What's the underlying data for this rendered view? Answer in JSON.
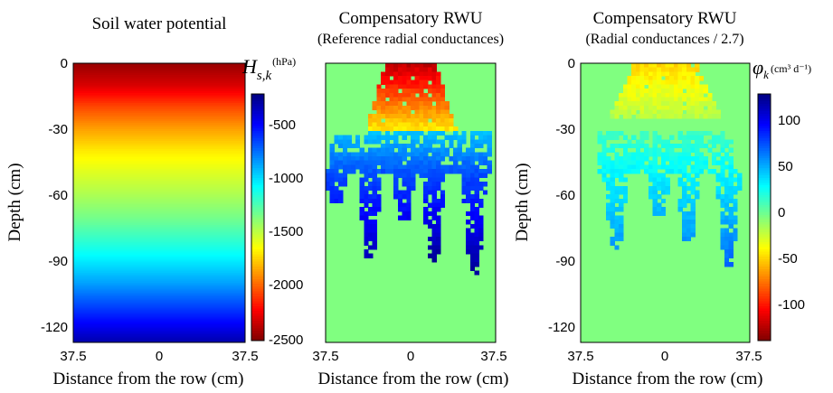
{
  "chart_data": [
    {
      "type": "heatmap",
      "title": "Soil water potential",
      "subtitle": "",
      "xlabel": "Distance from the row  (cm)",
      "ylabel": "Depth  (cm)",
      "xticks": [
        "37.5",
        "0",
        "37.5"
      ],
      "yticks": [
        "0",
        "-30",
        "-60",
        "-90",
        "-120"
      ],
      "x_range": [
        -37.5,
        37.5
      ],
      "y_range": [
        -127,
        0
      ],
      "field": "soil water potential, varying with depth only",
      "profile": {
        "depth": [
          0,
          -10,
          -20,
          -30,
          -40,
          -50,
          -60,
          -70,
          -80,
          -90,
          -100,
          -110,
          -120,
          -127
        ],
        "value": [
          -2450,
          -2300,
          -2050,
          -1850,
          -1680,
          -1560,
          -1450,
          -1330,
          -1180,
          -1020,
          -850,
          -650,
          -450,
          -300
        ]
      },
      "colorbar": {
        "symbol": "H",
        "subscript": "s,k",
        "unit": "(hPa)",
        "range": [
          -2500,
          -200
        ],
        "ticks": [
          "-500",
          "-1000",
          "-1500",
          "-2000",
          "-2500"
        ],
        "colormap": "jet reversed"
      }
    },
    {
      "type": "heatmap",
      "title": "Compensatory RWU",
      "subtitle": "(Reference radial conductances)",
      "xlabel": "Distance from the row  (cm)",
      "xticks": [
        "37.5",
        "0",
        "37.5"
      ],
      "x_range": [
        -37.5,
        37.5
      ],
      "y_range": [
        -127,
        0
      ],
      "background_value": 0,
      "top_cluster": {
        "x_range": [
          -20,
          20
        ],
        "depth_range": [
          0,
          -30
        ],
        "value_range": [
          -120,
          -40
        ]
      },
      "root_zone": {
        "x_range": [
          -35,
          35
        ],
        "depth_range": [
          -30,
          -50
        ],
        "value_range": [
          45,
          80
        ]
      },
      "root_fingers": [
        {
          "x": -33,
          "bottom": -63,
          "value": 95
        },
        {
          "x": -18,
          "bottom": -88,
          "value": 120
        },
        {
          "x": -3,
          "bottom": -72,
          "value": 105
        },
        {
          "x": 10,
          "bottom": -90,
          "value": 130
        },
        {
          "x": 28,
          "bottom": -97,
          "value": 130
        }
      ]
    },
    {
      "type": "heatmap",
      "title": "Compensatory RWU",
      "subtitle": "(Radial conductances / 2.7)",
      "xlabel": "Distance from the row  (cm)",
      "xticks": [
        "37.5",
        "0",
        "37.5"
      ],
      "yticks": [
        "0",
        "-30",
        "-60",
        "-90",
        "-120"
      ],
      "x_range": [
        -37.5,
        37.5
      ],
      "y_range": [
        -127,
        0
      ],
      "background_value": 0,
      "top_cluster": {
        "x_range": [
          -25,
          25
        ],
        "depth_range": [
          0,
          -25
        ],
        "value_range": [
          -45,
          -15
        ]
      },
      "root_zone": {
        "x_range": [
          -30,
          30
        ],
        "depth_range": [
          -30,
          -50
        ],
        "value_range": [
          15,
          35
        ]
      },
      "root_fingers": [
        {
          "x": -22,
          "bottom": -84,
          "value": 60
        },
        {
          "x": -3,
          "bottom": -70,
          "value": 55
        },
        {
          "x": 10,
          "bottom": -80,
          "value": 60
        },
        {
          "x": 28,
          "bottom": -93,
          "value": 75
        }
      ],
      "colorbar": {
        "symbol": "φ",
        "subscript": "k",
        "unit": "(cm³ d⁻¹)",
        "range": [
          -135,
          135
        ],
        "ticks": [
          "100",
          "50",
          "0",
          "-50",
          "-100"
        ],
        "colormap": "jet reversed"
      }
    }
  ]
}
